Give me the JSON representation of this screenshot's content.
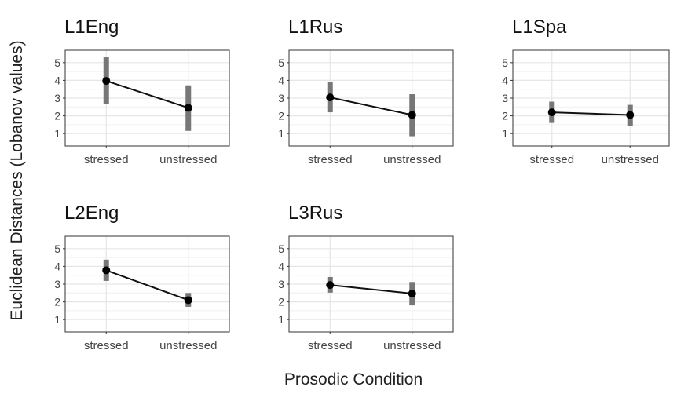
{
  "chart_data": {
    "type": "line",
    "ylabel": "Euclidean Distances (Lobanov values)",
    "xlabel": "Prosodic Condition",
    "categories": [
      "stressed",
      "unstressed"
    ],
    "yticks": [
      1,
      2,
      3,
      4,
      5
    ],
    "ylim": [
      0.3,
      5.7
    ],
    "grid": true,
    "colors": {
      "line": "#111111",
      "point": "#000000",
      "errorbar": "#777777",
      "panel_border": "#333333",
      "grid": "#e6e6e6"
    },
    "panels": [
      {
        "title": "L1Eng",
        "values": [
          3.97,
          2.45
        ],
        "ranges": [
          [
            2.65,
            5.3
          ],
          [
            1.15,
            3.72
          ]
        ]
      },
      {
        "title": "L1Rus",
        "values": [
          3.04,
          2.05
        ],
        "ranges": [
          [
            2.2,
            3.92
          ],
          [
            0.85,
            3.22
          ]
        ]
      },
      {
        "title": "L1Spa",
        "values": [
          2.2,
          2.05
        ],
        "ranges": [
          [
            1.6,
            2.8
          ],
          [
            1.45,
            2.62
          ]
        ]
      },
      {
        "title": "L2Eng",
        "values": [
          3.78,
          2.1
        ],
        "ranges": [
          [
            3.18,
            4.38
          ],
          [
            1.72,
            2.5
          ]
        ]
      },
      {
        "title": "L3Rus",
        "values": [
          2.95,
          2.47
        ],
        "ranges": [
          [
            2.52,
            3.4
          ],
          [
            1.8,
            3.12
          ]
        ]
      }
    ]
  }
}
